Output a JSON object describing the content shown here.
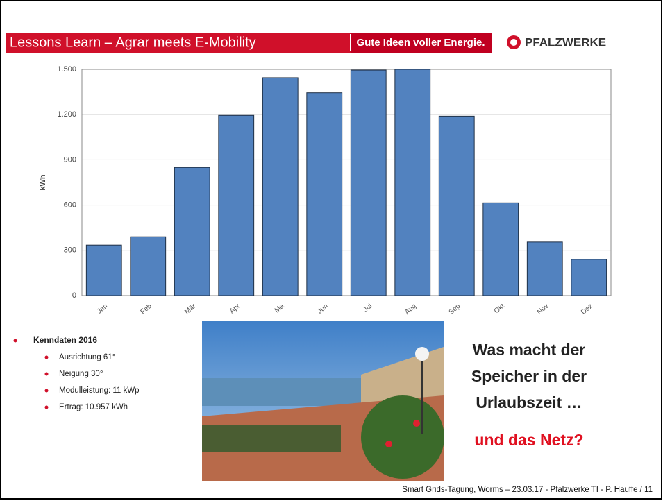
{
  "header": {
    "title": "Lessons Learn – Agrar meets E-Mobility",
    "slogan": "Gute Ideen voller Energie.",
    "logo": "PFALZWERKE"
  },
  "chart_data": {
    "type": "bar",
    "ylabel": "kWh",
    "categories": [
      "Jan",
      "Feb",
      "Mär",
      "Apr",
      "Ma",
      "Jun",
      "Jul",
      "Aug",
      "Sep",
      "Okt",
      "Nov",
      "Dez"
    ],
    "values": [
      335,
      390,
      850,
      1195,
      1445,
      1345,
      1495,
      1500,
      1190,
      615,
      355,
      240
    ],
    "color": "#5282bf",
    "ylim": [
      0,
      1500
    ],
    "yticks": [
      0,
      300,
      600,
      900,
      {
        "value": 1200,
        "label": "1.200"
      },
      {
        "value": 1500,
        "label": "1.500"
      }
    ],
    "grid": true
  },
  "bullets": {
    "heading": "Kenndaten 2016",
    "items": [
      "Ausrichtung 61°",
      "Neigung 30°",
      "Modulleistung: 11 kWp",
      "Ertrag: 10.957 kWh"
    ]
  },
  "question": [
    "Was macht der",
    "Speicher in der",
    "Urlaubszeit …"
  ],
  "answer": "und das Netz?",
  "footer": "Smart Grids-Tagung, Worms – 23.03.17 - Pfalzwerke TI - P. Hauffe / 11"
}
